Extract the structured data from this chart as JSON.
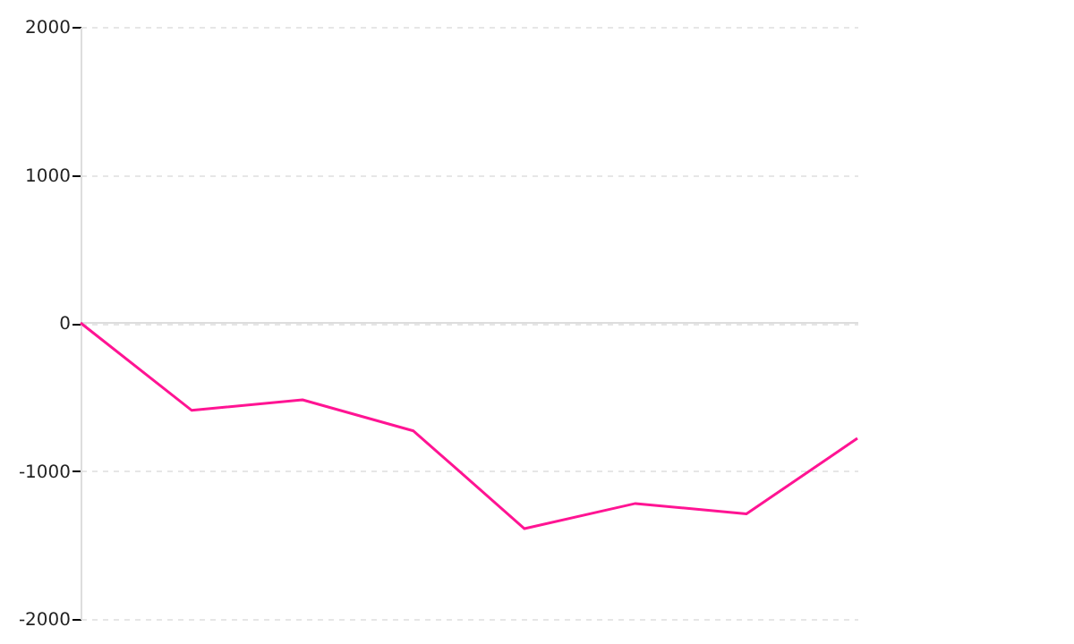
{
  "chart_data": {
    "type": "line",
    "categories": [
      null,
      null,
      null,
      null,
      null,
      null,
      null,
      null
    ],
    "series": [
      {
        "color": "#ff1493",
        "values": [
          0,
          -590,
          -520,
          -730,
          -1390,
          -1220,
          -1290,
          -780
        ]
      }
    ],
    "ylim": [
      -2000,
      2000
    ],
    "yticks": [
      -2000,
      -1000,
      0,
      1000,
      2000
    ],
    "grid": "y",
    "tick_labels": "y",
    "marker": "none",
    "line_style": "solid"
  }
}
